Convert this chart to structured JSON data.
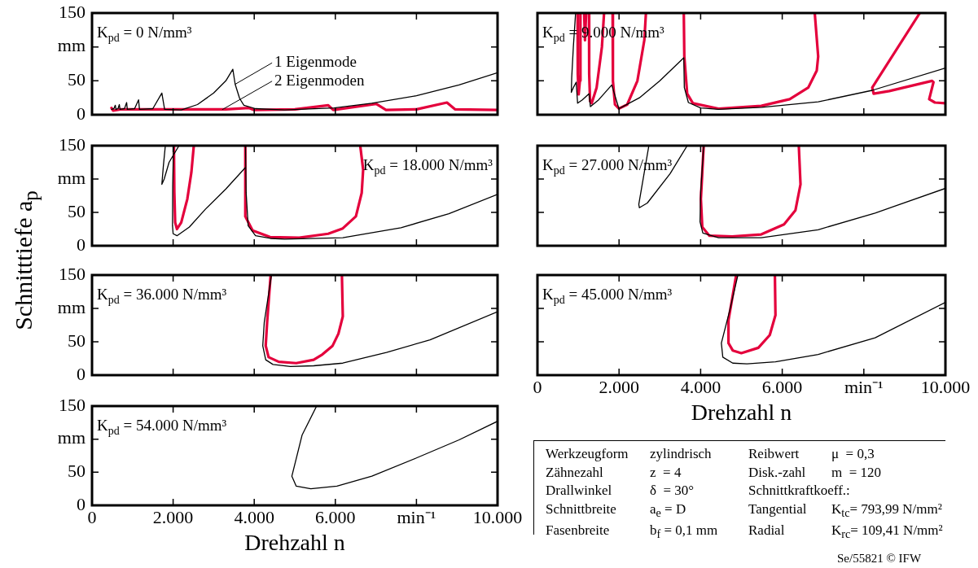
{
  "chart_data": [
    {
      "type": "line",
      "ylabel": "Schnitttiefe a$_{p}$",
      "annotations": [
        "K$_{pd}$ = 0 N/mm³"
      ],
      "marker": "none",
      "tick_labels": "y",
      "xlim": [
        0,
        10000
      ],
      "xticks": [
        {
          "value": 2000,
          "label": null
        },
        {
          "value": 4000,
          "label": null
        },
        {
          "value": 6000,
          "label": null
        },
        {
          "value": 8000,
          "label": null
        }
      ],
      "ylim": [
        0,
        150
      ],
      "yticks": [
        0,
        50,
        {
          "value": 100,
          "label": "mm"
        },
        150
      ],
      "series": [
        {
          "name": "1 Eigenmode",
          "color": "#000000",
          "x": [
            480,
            540,
            574,
            590,
            640,
            674,
            690,
            800,
            854,
            870,
            1050,
            1148,
            1170,
            1500,
            1722,
            1790,
            2200,
            2600,
            3000,
            3300,
            3472,
            3530,
            3640,
            3745,
            4032,
            4750,
            5970,
            6900,
            8000,
            9050,
            10000
          ],
          "values": [
            8,
            9,
            14,
            8,
            9,
            15,
            8,
            9,
            18,
            8,
            9,
            22,
            8,
            9,
            32,
            8,
            7,
            15,
            32,
            50,
            67,
            45,
            24,
            14,
            9,
            7,
            10,
            17,
            28,
            44,
            62
          ]
        },
        {
          "name": "2 Eigenmoden",
          "color": "#e4003c",
          "x": [
            480,
            520,
            700,
            1500,
            2500,
            3300,
            3874,
            4000,
            5000,
            5825,
            5950,
            7008,
            7250,
            8000,
            8752,
            8950,
            10000
          ],
          "values": [
            10,
            6,
            8,
            8,
            8,
            8,
            10,
            7,
            8,
            14,
            7,
            16,
            7,
            8,
            18,
            8,
            7
          ]
        }
      ]
    },
    {
      "type": "line",
      "annotations": [
        "K$_{pd}$ = 9.000 N/mm³"
      ],
      "marker": "none",
      "tick_labels": false,
      "xlim": [
        0,
        10000
      ],
      "xticks": [
        {
          "value": 2000,
          "label": null
        },
        {
          "value": 4000,
          "label": null
        },
        {
          "value": 6000,
          "label": null
        },
        {
          "value": 8000,
          "label": null
        }
      ],
      "ylim": [
        0,
        150
      ],
      "yticks": [
        {
          "value": 0,
          "label": null
        },
        {
          "value": 50,
          "label": null
        },
        {
          "value": 100,
          "label": null
        },
        {
          "value": 150,
          "label": null
        }
      ],
      "series": [
        {
          "color": "#000000",
          "x": [
            935,
            880,
            840,
            830,
            880,
            950,
            984,
            1100,
            1263,
            1298,
            1500,
            1822,
            1996,
            2500,
            3000,
            3587,
            3600,
            3700,
            4000,
            4438,
            5500,
            6881,
            8206,
            10000
          ],
          "values": [
            150,
            100,
            55,
            33,
            40,
            48,
            17,
            22,
            31,
            12,
            22,
            44,
            9,
            25,
            50,
            84,
            40,
            18,
            10,
            8,
            11,
            19,
            36,
            69
          ]
        },
        {
          "color": "#e4003c",
          "x": [
            984,
            988,
            1010,
            1040,
            1054,
            null,
            1144,
            1165,
            1193,
            null,
            1263,
            1268,
            1290,
            1330,
            1450,
            1580,
            1633,
            null,
            1842,
            1850,
            1900,
            1996,
            2200,
            2450,
            2620,
            2659,
            null,
            3587,
            3600,
            3670,
            3810,
            4438,
            5485,
            6183,
            6637,
            6846,
            6881,
            6797,
            null,
            9372,
            8206,
            8241,
            8625,
            9672,
            9707,
            9602,
            9742,
            10000
          ],
          "values": [
            150,
            60,
            30,
            50,
            150,
            null,
            150,
            110,
            150,
            null,
            150,
            60,
            20,
            17,
            40,
            100,
            150,
            null,
            150,
            50,
            15,
            9,
            15,
            50,
            110,
            150,
            null,
            150,
            86,
            31,
            17,
            9,
            13,
            23,
            40,
            65,
            86,
            150,
            null,
            150,
            40,
            31,
            35,
            50,
            48,
            23,
            18,
            17
          ]
        }
      ]
    },
    {
      "type": "line",
      "annotations": [
        "K$_{pd}$ = 18.000 N/mm³"
      ],
      "marker": "none",
      "tick_labels": "y",
      "xlim": [
        0,
        10000
      ],
      "xticks": [
        {
          "value": 2000,
          "label": null
        },
        {
          "value": 4000,
          "label": null
        },
        {
          "value": 6000,
          "label": null
        },
        {
          "value": 8000,
          "label": null
        }
      ],
      "ylim": [
        0,
        150
      ],
      "yticks": [
        0,
        50,
        {
          "value": 100,
          "label": "mm"
        },
        150
      ],
      "series": [
        {
          "color": "#000000",
          "x": [
            1808,
            1760,
            1722,
            1780,
            1900,
            2145,
            null,
            2010,
            1990,
            1985,
            2000,
            2095,
            2400,
            2800,
            3300,
            3780,
            null,
            3785,
            3800,
            3850,
            4032,
            4400,
            4749,
            6184,
            7618,
            8800,
            10000
          ],
          "values": [
            150,
            120,
            92,
            100,
            125,
            150,
            null,
            150,
            90,
            30,
            18,
            15,
            28,
            55,
            85,
            117,
            null,
            150,
            80,
            30,
            15,
            11,
            10,
            12,
            27,
            48,
            77
          ]
        },
        {
          "color": "#e4003c",
          "x": [
            2020,
            2030,
            2050,
            2095,
            2200,
            2350,
            2450,
            2510,
            null,
            3780,
            3780,
            3960,
            4390,
            5108,
            5825,
            6184,
            6507,
            6650,
            6686,
            6614
          ],
          "values": [
            150,
            80,
            35,
            25,
            35,
            70,
            110,
            150,
            null,
            150,
            44,
            23,
            13,
            12,
            18,
            26,
            44,
            79,
            114,
            150
          ]
        }
      ]
    },
    {
      "type": "line",
      "annotations": [
        "K$_{pd}$ = 27.000 N/mm³"
      ],
      "marker": "none",
      "tick_labels": false,
      "xlim": [
        0,
        10000
      ],
      "xticks": [
        {
          "value": 2000,
          "label": null
        },
        {
          "value": 4000,
          "label": null
        },
        {
          "value": 6000,
          "label": null
        },
        {
          "value": 8000,
          "label": null
        }
      ],
      "ylim": [
        0,
        150
      ],
      "yticks": [
        {
          "value": 0,
          "label": null
        },
        {
          "value": 50,
          "label": null
        },
        {
          "value": 100,
          "label": null
        },
        {
          "value": 150,
          "label": null
        }
      ],
      "series": [
        {
          "color": "#000000",
          "x": [
            2731,
            2484,
            2498,
            2693,
            3252,
            3671,
            null,
            4075,
            4000,
            3985,
            4054,
            4438,
            5485,
            6881,
            8276,
            10000
          ],
          "values": [
            150,
            62,
            57,
            64,
            108,
            150,
            null,
            150,
            80,
            36,
            19,
            12,
            12,
            24,
            49,
            86
          ]
        },
        {
          "color": "#e4003c",
          "x": [
            4075,
            4006,
            4040,
            4215,
            4773,
            5485,
            6044,
            6323,
            6448,
            6406
          ],
          "values": [
            150,
            70,
            28,
            15,
            14,
            17,
            32,
            53,
            92,
            150
          ]
        }
      ]
    },
    {
      "type": "line",
      "annotations": [
        "K$_{pd}$ = 36.000 N/mm³"
      ],
      "marker": "none",
      "tick_labels": "y",
      "xlim": [
        0,
        10000
      ],
      "xticks": [
        {
          "value": 2000,
          "label": null
        },
        {
          "value": 4000,
          "label": null
        },
        {
          "value": 6000,
          "label": null
        },
        {
          "value": 8000,
          "label": null
        }
      ],
      "ylim": [
        0,
        150
      ],
      "yticks": [
        0,
        50,
        {
          "value": 100,
          "label": "mm"
        },
        150
      ],
      "series": [
        {
          "color": "#000000",
          "x": [
            4426,
            4247,
            4210,
            4283,
            4462,
            4892,
            5466,
            6184,
            7260,
            8336,
            10000
          ],
          "values": [
            150,
            79,
            44,
            23,
            16,
            13,
            14,
            18,
            34,
            53,
            95
          ]
        },
        {
          "color": "#e4003c",
          "x": [
            4405,
            4318,
            4283,
            4354,
            4605,
            5036,
            5466,
            5681,
            5932,
            6076,
            6184,
            6162
          ],
          "values": [
            150,
            79,
            44,
            27,
            20,
            18,
            23,
            31,
            44,
            62,
            88,
            150
          ]
        }
      ]
    },
    {
      "type": "line",
      "annotations": [
        "K$_{pd}$ = 45.000 N/mm³"
      ],
      "xlabel": "Drehzahl n",
      "marker": "none",
      "tick_labels": "x",
      "xlim": [
        0,
        10000
      ],
      "xticks": [
        0,
        {
          "value": 2000,
          "label": "2.000"
        },
        {
          "value": 4000,
          "label": "4.000"
        },
        {
          "value": 6000,
          "label": "6.000"
        },
        {
          "value": 8000,
          "label": "min⁻¹"
        },
        {
          "value": 10000,
          "label": "10.000"
        }
      ],
      "ylim": [
        0,
        150
      ],
      "yticks": [
        {
          "value": 0,
          "label": null
        },
        {
          "value": 50,
          "label": null
        },
        {
          "value": 100,
          "label": null
        },
        {
          "value": 150,
          "label": null
        }
      ],
      "series": [
        {
          "color": "#000000",
          "x": [
            4913,
            4717,
            4508,
            4543,
            4787,
            5136,
            5834,
            6881,
            8276,
            10000
          ],
          "values": [
            150,
            98,
            48,
            27,
            18,
            17,
            20,
            31,
            56,
            109
          ]
        },
        {
          "color": "#e4003c",
          "x": [
            4871,
            4682,
            4682,
            4787,
            4997,
            5415,
            5694,
            5834,
            5820
          ],
          "values": [
            150,
            82,
            48,
            37,
            33,
            41,
            60,
            90,
            150
          ]
        }
      ]
    },
    {
      "type": "line",
      "annotations": [
        "K$_{pd}$ = 54.000 N/mm³"
      ],
      "xlabel": "Drehzahl n",
      "marker": "none",
      "xlim": [
        0,
        10000
      ],
      "xticks": [
        0,
        {
          "value": 2000,
          "label": "2.000"
        },
        {
          "value": 4000,
          "label": "4.000"
        },
        {
          "value": 6000,
          "label": "6.000"
        },
        {
          "value": 8000,
          "label": "min⁻¹"
        },
        {
          "value": 10000,
          "label": "10.000"
        }
      ],
      "ylim": [
        0,
        150
      ],
      "yticks": [
        0,
        50,
        {
          "value": 100,
          "label": "mm"
        },
        150
      ],
      "series": [
        {
          "color": "#000000",
          "x": [
            5538,
            5179,
            4928,
            5036,
            5394,
            6040,
            6901,
            7977,
            9053,
            10000
          ],
          "values": [
            150,
            106,
            44,
            29,
            25,
            29,
            44,
            71,
            99,
            127
          ]
        }
      ]
    },
    {
      "type": "other",
      "annotations": [
        "Werkzeugform",
        "zylindrisch",
        "Zähnezahl",
        "z  = 4",
        "Drallwinkel",
        "δ  = 30°",
        "Schnittbreite",
        "a$_{e}$ = D",
        "Fasenbreite",
        "b$_{f}$ = 0,1 mm",
        "Reibwert",
        "μ  = 0,3",
        "Disk.-zahl",
        "m  = 120",
        "Schnittkraftkoeff.:",
        "Tangential",
        "K$_{tc}$= 793,99 N/mm²",
        "Radial",
        "K$_{rc}$= 109,41 N/mm²",
        "Se/55821 © IFW"
      ]
    }
  ]
}
